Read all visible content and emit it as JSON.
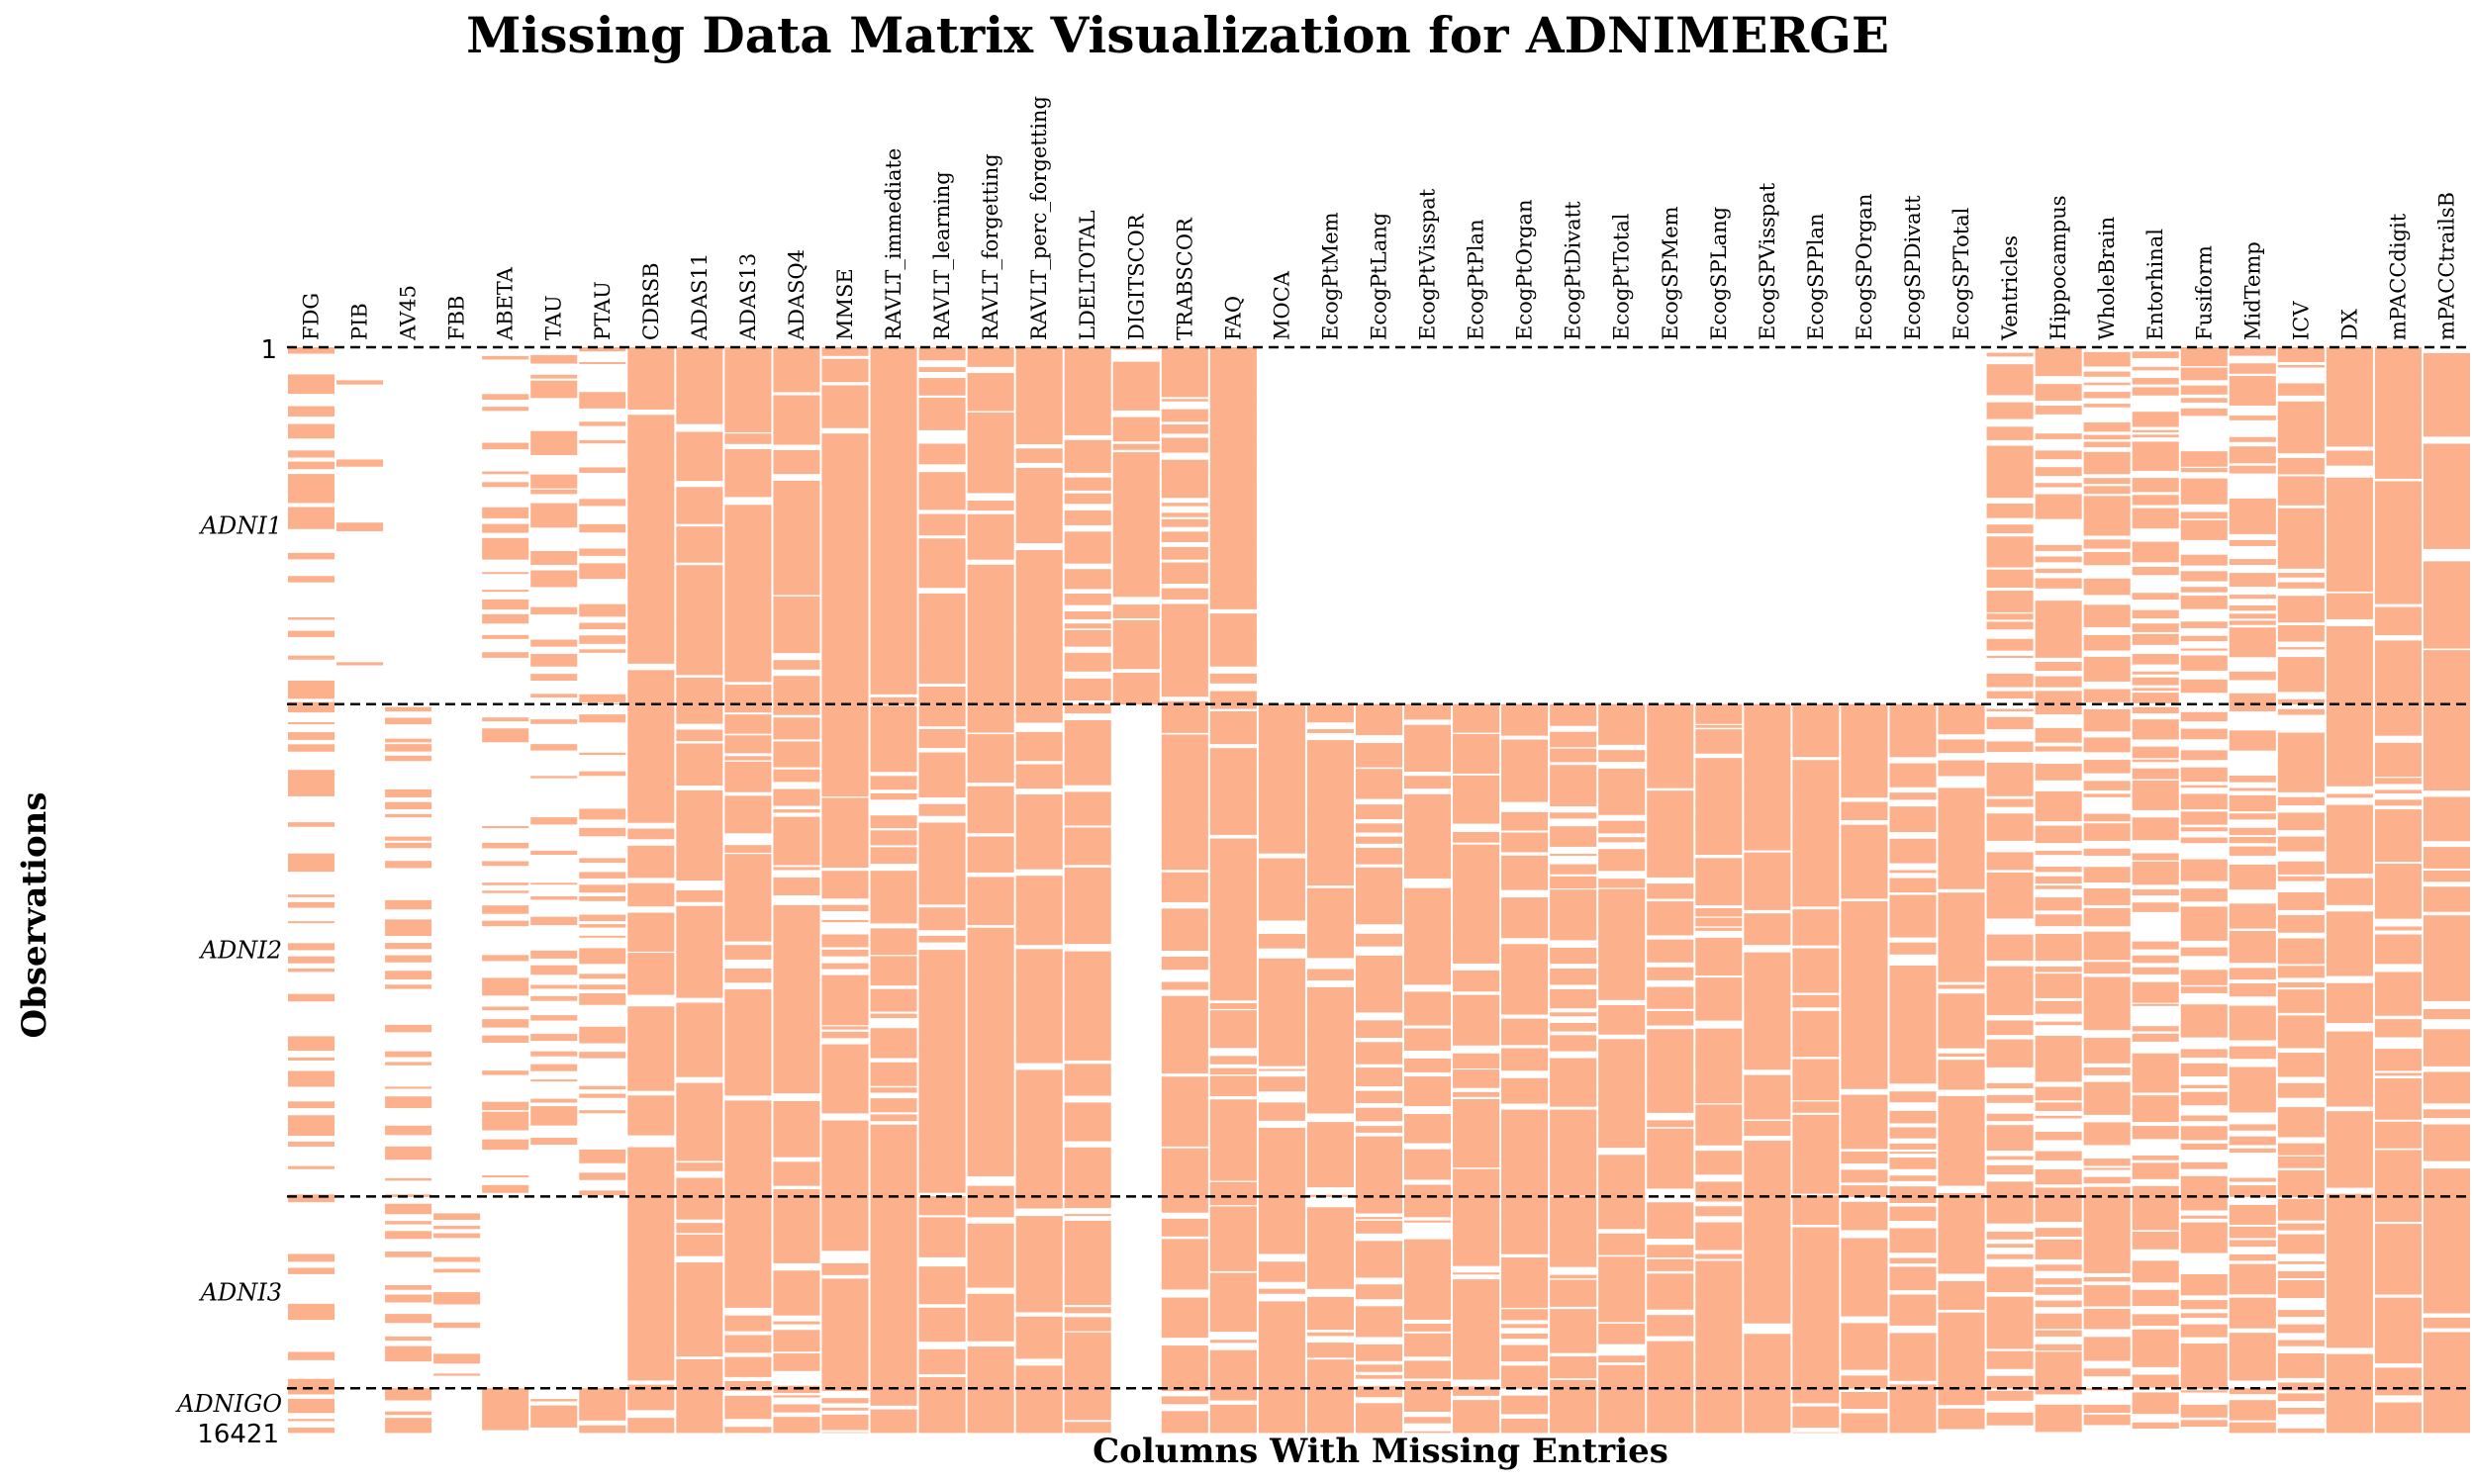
{
  "chart_data": {
    "type": "heatmap",
    "title": "Missing Data Matrix Visualization for ADNIMERGE",
    "xlabel": "Columns With Missing Entries",
    "ylabel": "Observations",
    "y_ticks": [
      "1",
      "16421"
    ],
    "cell_color": "#fcb08c",
    "background_color": "#ffffff",
    "columns": [
      "FDG",
      "PIB",
      "AV45",
      "FBB",
      "ABETA",
      "TAU",
      "PTAU",
      "CDRSB",
      "ADAS11",
      "ADAS13",
      "ADASQ4",
      "MMSE",
      "RAVLT_immediate",
      "RAVLT_learning",
      "RAVLT_forgetting",
      "RAVLT_perc_forgetting",
      "LDELTOTAL",
      "DIGITSCOR",
      "TRABSCOR",
      "FAQ",
      "MOCA",
      "EcogPtMem",
      "EcogPtLang",
      "EcogPtVisspat",
      "EcogPtPlan",
      "EcogPtOrgan",
      "EcogPtDivatt",
      "EcogPtTotal",
      "EcogSPMem",
      "EcogSPLang",
      "EcogSPVisspat",
      "EcogSPPlan",
      "EcogSPOrgan",
      "EcogSPDivatt",
      "EcogSPTotal",
      "Ventricles",
      "Hippocampus",
      "WholeBrain",
      "Entorhinal",
      "Fusiform",
      "MidTemp",
      "ICV",
      "DX",
      "mPACCdigit",
      "mPACCtrailsB"
    ],
    "groups": [
      {
        "name": "ADNI1",
        "observations": [
          1,
          5400
        ]
      },
      {
        "name": "ADNI2",
        "observations": [
          5401,
          12850
        ]
      },
      {
        "name": "ADNI3",
        "observations": [
          12851,
          15750
        ]
      },
      {
        "name": "ADNIGO",
        "observations": [
          15751,
          16421
        ]
      }
    ],
    "presence_fraction_by_group": {
      "ADNI1": [
        0.45,
        0.08,
        0,
        0,
        0.35,
        0.35,
        0.35,
        0.92,
        0.92,
        0.92,
        0.92,
        0.92,
        0.92,
        0.92,
        0.92,
        0.92,
        0.88,
        0.92,
        0.85,
        0.92,
        0,
        0,
        0,
        0,
        0,
        0,
        0,
        0,
        0,
        0,
        0,
        0,
        0,
        0,
        0,
        0.75,
        0.6,
        0.7,
        0.6,
        0.6,
        0.6,
        0.75,
        0.95,
        0.92,
        0.92
      ],
      "ADNI2": [
        0.3,
        0,
        0.3,
        0,
        0.3,
        0.3,
        0.3,
        0.9,
        0.9,
        0.9,
        0.9,
        0.9,
        0.9,
        0.9,
        0.9,
        0.9,
        0.9,
        0,
        0.85,
        0.9,
        0.9,
        0.88,
        0.88,
        0.88,
        0.88,
        0.88,
        0.88,
        0.88,
        0.88,
        0.88,
        0.88,
        0.88,
        0.88,
        0.88,
        0.88,
        0.7,
        0.65,
        0.68,
        0.65,
        0.65,
        0.65,
        0.7,
        0.9,
        0.9,
        0.9
      ],
      "ADNI3": [
        0.15,
        0,
        0.35,
        0.35,
        0,
        0,
        0,
        0.9,
        0.9,
        0.9,
        0.9,
        0.9,
        0.9,
        0.9,
        0.9,
        0.9,
        0.9,
        0,
        0.88,
        0.9,
        0.9,
        0.88,
        0.88,
        0.88,
        0.88,
        0.88,
        0.88,
        0.88,
        0.88,
        0.88,
        0.88,
        0.88,
        0.88,
        0.88,
        0.88,
        0.75,
        0.7,
        0.72,
        0.7,
        0.7,
        0.7,
        0.75,
        0.92,
        0.92,
        0.92
      ],
      "ADNIGO": [
        0.6,
        0,
        0.6,
        0,
        0.6,
        0.6,
        0.6,
        0.9,
        0.9,
        0.9,
        0.9,
        0.9,
        0.9,
        0.9,
        0.9,
        0.9,
        0.9,
        0,
        0.88,
        0.9,
        0.9,
        0.88,
        0.88,
        0.88,
        0.88,
        0.88,
        0.88,
        0.88,
        0.88,
        0.88,
        0.88,
        0.88,
        0.88,
        0.88,
        0.88,
        0.7,
        0.7,
        0.7,
        0.7,
        0.7,
        0.7,
        0.7,
        0.9,
        0.9,
        0.9
      ]
    }
  }
}
